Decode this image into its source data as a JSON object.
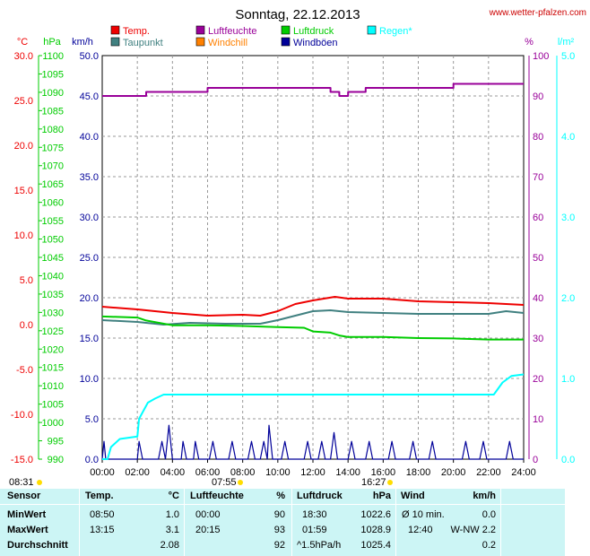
{
  "header": {
    "title": "Sonntag, 22.12.2013",
    "website": "www.wetter-pfalzen.com"
  },
  "legend": [
    {
      "label": "Temp.",
      "color": "#ee0000"
    },
    {
      "label": "Luftfeuchte",
      "color": "#990099"
    },
    {
      "label": "Luftdruck",
      "color": "#00cc00"
    },
    {
      "label": "Regen*",
      "color": "#00ffff"
    },
    {
      "label": "Taupunkt",
      "color": "#408080"
    },
    {
      "label": "Windchill",
      "color": "#ff8000"
    },
    {
      "label": "Windböen",
      "color": "#000099"
    }
  ],
  "axes": {
    "temp_unit": "°C",
    "pressure_unit": "hPa",
    "wind_unit": "km/h",
    "humidity_unit": "%",
    "rain_unit": "l/m²",
    "temp_ticks": [
      "30.0",
      "25.0",
      "20.0",
      "15.0",
      "10.0",
      "5.0",
      "0.0",
      "-5.0",
      "-10.0",
      "-15.0"
    ],
    "pressure_ticks": [
      "1100",
      "1095",
      "1090",
      "1085",
      "1080",
      "1075",
      "1070",
      "1065",
      "1060",
      "1055",
      "1050",
      "1045",
      "1040",
      "1035",
      "1030",
      "1025",
      "1020",
      "1015",
      "1010",
      "1005",
      "1000",
      "995",
      "990"
    ],
    "wind_ticks": [
      "50.0",
      "45.0",
      "40.0",
      "35.0",
      "30.0",
      "25.0",
      "20.0",
      "15.0",
      "10.0",
      "5.0",
      "0.0"
    ],
    "humidity_ticks": [
      "100",
      "90",
      "80",
      "70",
      "60",
      "50",
      "40",
      "30",
      "20",
      "10",
      "0"
    ],
    "rain_ticks": [
      "5.0",
      "4.0",
      "3.0",
      "2.0",
      "1.0",
      "0.0"
    ],
    "x_ticks": [
      "00:00",
      "02:00",
      "04:00",
      "06:00",
      "08:00",
      "10:00",
      "12:00",
      "14:00",
      "16:00",
      "18:00",
      "20:00",
      "22:00",
      "24:00"
    ]
  },
  "sun": {
    "civil_dawn": "08:31",
    "sunrise": "07:55",
    "sunset": "16:27"
  },
  "chart_data": {
    "type": "line",
    "title": "Sonntag, 22.12.2013",
    "x_unit": "hours",
    "xlim": [
      0,
      24
    ],
    "grid": true,
    "axes_ranges": {
      "temp": [
        -15,
        30
      ],
      "pressure": [
        990,
        1100
      ],
      "wind": [
        0,
        50
      ],
      "humidity": [
        0,
        100
      ],
      "rain": [
        0,
        5
      ]
    },
    "series": [
      {
        "name": "Temp.",
        "axis": "temp",
        "color": "#ee0000",
        "points": [
          [
            0,
            2.0
          ],
          [
            2,
            1.7
          ],
          [
            4,
            1.3
          ],
          [
            6,
            1.0
          ],
          [
            8,
            1.1
          ],
          [
            9,
            1.0
          ],
          [
            10,
            1.5
          ],
          [
            11,
            2.3
          ],
          [
            12,
            2.7
          ],
          [
            13.25,
            3.1
          ],
          [
            14,
            2.9
          ],
          [
            16,
            2.9
          ],
          [
            18,
            2.6
          ],
          [
            20,
            2.5
          ],
          [
            22,
            2.4
          ],
          [
            23,
            2.3
          ],
          [
            24,
            2.2
          ]
        ]
      },
      {
        "name": "Taupunkt",
        "axis": "temp",
        "color": "#408080",
        "points": [
          [
            0,
            0.5
          ],
          [
            2,
            0.3
          ],
          [
            3.5,
            0.0
          ],
          [
            5,
            0.2
          ],
          [
            7,
            0.1
          ],
          [
            9,
            0.1
          ],
          [
            10,
            0.5
          ],
          [
            11,
            1.0
          ],
          [
            12,
            1.5
          ],
          [
            13,
            1.6
          ],
          [
            14,
            1.4
          ],
          [
            16,
            1.3
          ],
          [
            18,
            1.2
          ],
          [
            20,
            1.2
          ],
          [
            22,
            1.2
          ],
          [
            23,
            1.5
          ],
          [
            24,
            1.3
          ]
        ]
      },
      {
        "name": "Luftdruck",
        "axis": "pressure",
        "color": "#00cc00",
        "points": [
          [
            0,
            1028.9
          ],
          [
            2,
            1028.6
          ],
          [
            2.5,
            1027.8
          ],
          [
            4,
            1026.5
          ],
          [
            6,
            1026.5
          ],
          [
            8,
            1026.3
          ],
          [
            10,
            1026.0
          ],
          [
            11.5,
            1025.8
          ],
          [
            12,
            1024.8
          ],
          [
            13,
            1024.5
          ],
          [
            13.5,
            1023.7
          ],
          [
            14,
            1023.3
          ],
          [
            16,
            1023.3
          ],
          [
            18,
            1023.0
          ],
          [
            20,
            1022.9
          ],
          [
            22,
            1022.6
          ],
          [
            24,
            1022.6
          ]
        ]
      },
      {
        "name": "Luftfeuchte",
        "axis": "humidity",
        "color": "#990099",
        "points": [
          [
            0,
            90
          ],
          [
            2.5,
            90
          ],
          [
            2.5,
            91
          ],
          [
            6,
            91
          ],
          [
            6,
            92
          ],
          [
            13,
            92
          ],
          [
            13,
            91
          ],
          [
            13.5,
            91
          ],
          [
            13.5,
            90
          ],
          [
            14,
            90
          ],
          [
            14,
            91
          ],
          [
            15,
            91
          ],
          [
            15,
            92
          ],
          [
            20,
            92
          ],
          [
            20,
            93
          ],
          [
            24,
            93
          ]
        ]
      },
      {
        "name": "Regen*",
        "axis": "rain",
        "color": "#00ffff",
        "points": [
          [
            0,
            0
          ],
          [
            0.3,
            0
          ],
          [
            0.5,
            0.15
          ],
          [
            1,
            0.25
          ],
          [
            2,
            0.28
          ],
          [
            2.1,
            0.5
          ],
          [
            2.6,
            0.7
          ],
          [
            3,
            0.75
          ],
          [
            3.5,
            0.8
          ],
          [
            4,
            0.8
          ],
          [
            22.3,
            0.8
          ],
          [
            22.8,
            0.95
          ],
          [
            23.3,
            1.03
          ],
          [
            24,
            1.05
          ]
        ]
      }
    ],
    "wind_gusts": {
      "name": "Windböen",
      "axis": "wind",
      "color": "#000099",
      "points": [
        [
          0,
          0
        ],
        [
          0.1,
          2.2
        ],
        [
          0.2,
          0
        ],
        [
          2,
          0
        ],
        [
          2.1,
          2.2
        ],
        [
          2.3,
          0
        ],
        [
          3.2,
          0
        ],
        [
          3.4,
          2.2
        ],
        [
          3.6,
          0
        ],
        [
          3.8,
          4.2
        ],
        [
          4,
          0
        ],
        [
          4.5,
          0
        ],
        [
          4.6,
          2.2
        ],
        [
          4.8,
          0
        ],
        [
          5.2,
          0
        ],
        [
          5.3,
          2.2
        ],
        [
          5.5,
          0
        ],
        [
          6.1,
          0
        ],
        [
          6.3,
          2.2
        ],
        [
          6.5,
          0
        ],
        [
          7.2,
          0
        ],
        [
          7.4,
          2.2
        ],
        [
          7.6,
          0
        ],
        [
          8.3,
          0
        ],
        [
          8.5,
          2.2
        ],
        [
          8.7,
          0
        ],
        [
          9,
          0
        ],
        [
          9.2,
          2.2
        ],
        [
          9.4,
          0
        ],
        [
          9.5,
          4.2
        ],
        [
          9.7,
          0
        ],
        [
          10.2,
          0
        ],
        [
          10.4,
          2.2
        ],
        [
          10.6,
          0
        ],
        [
          11.5,
          0
        ],
        [
          11.7,
          2.2
        ],
        [
          11.9,
          0
        ],
        [
          12.3,
          0
        ],
        [
          12.5,
          2.2
        ],
        [
          12.7,
          0
        ],
        [
          13,
          0
        ],
        [
          13.2,
          3.3
        ],
        [
          13.4,
          0
        ],
        [
          14,
          0
        ],
        [
          14.2,
          2.2
        ],
        [
          14.4,
          0
        ],
        [
          15,
          0
        ],
        [
          15.2,
          2.2
        ],
        [
          15.4,
          0
        ],
        [
          16.3,
          0
        ],
        [
          16.5,
          2.2
        ],
        [
          16.7,
          0
        ],
        [
          17.5,
          0
        ],
        [
          17.7,
          2.2
        ],
        [
          17.9,
          0
        ],
        [
          18.6,
          0
        ],
        [
          18.8,
          2.2
        ],
        [
          19,
          0
        ],
        [
          20.5,
          0
        ],
        [
          20.7,
          2.2
        ],
        [
          20.9,
          0
        ],
        [
          21.5,
          0
        ],
        [
          21.7,
          2.2
        ],
        [
          21.9,
          0
        ],
        [
          23,
          0
        ],
        [
          23.2,
          2.2
        ],
        [
          23.4,
          0
        ],
        [
          24,
          0
        ]
      ]
    }
  },
  "stats": {
    "headers": {
      "sensor": "Sensor",
      "temp": "Temp.",
      "temp_unit": "°C",
      "hum": "Luftfeuchte",
      "hum_unit": "%",
      "press": "Luftdruck",
      "press_unit": "hPa",
      "wind": "Wind",
      "wind_unit": "km/h"
    },
    "rows": [
      {
        "label": "MinWert",
        "temp_time": "08:50",
        "temp_val": "1.0",
        "hum_time": "00:00",
        "hum_val": "90",
        "press_time": "18:30",
        "press_val": "1022.6",
        "wind_time": "Ø 10 min.",
        "wind_val": "0.0"
      },
      {
        "label": "MaxWert",
        "temp_time": "13:15",
        "temp_val": "3.1",
        "hum_time": "20:15",
        "hum_val": "93",
        "press_time": "01:59",
        "press_val": "1028.9",
        "wind_time": "12:40",
        "wind_val": "W-NW 2.2"
      },
      {
        "label": "Durchschnitt",
        "temp_time": "",
        "temp_val": "2.08",
        "hum_time": "",
        "hum_val": "92",
        "press_time": "^1.5hPa/h",
        "press_val": "1025.4",
        "wind_time": "",
        "wind_val": "0.2"
      }
    ]
  }
}
